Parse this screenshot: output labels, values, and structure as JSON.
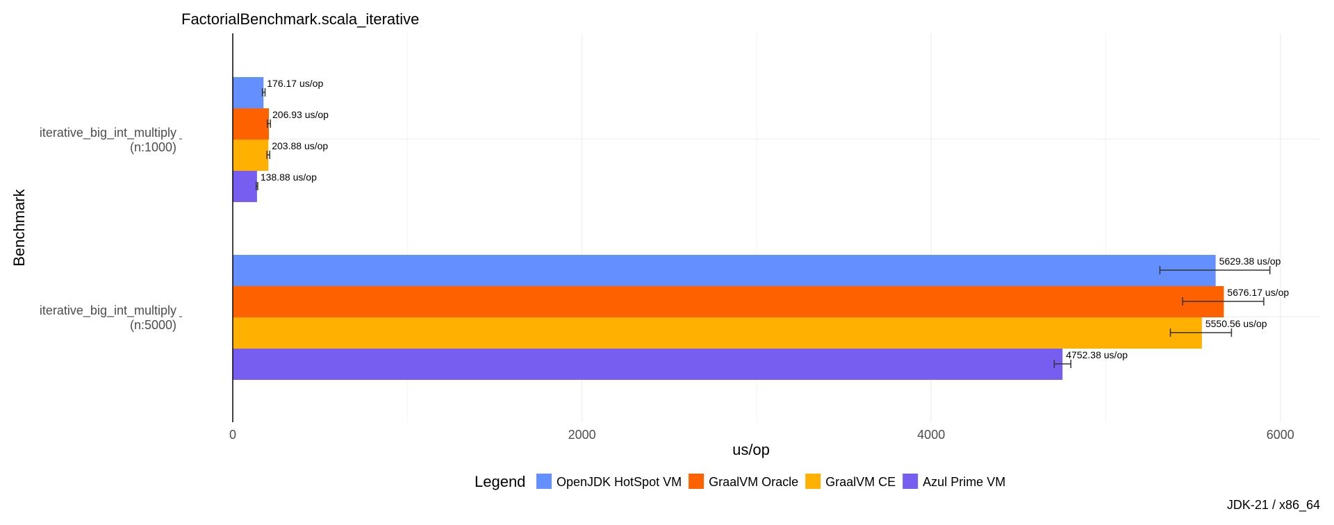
{
  "chart_data": {
    "type": "bar",
    "orientation": "horizontal",
    "title": "FactorialBenchmark.scala_iterative",
    "xlabel": "us/op",
    "ylabel": "Benchmark",
    "xlim": [
      0,
      6250
    ],
    "x_ticks": [
      "0",
      "2000",
      "4000",
      "6000"
    ],
    "grid": true,
    "categories": [
      {
        "line1": "iterative_big_int_multiply",
        "line2": "(n:1000)"
      },
      {
        "line1": "iterative_big_int_multiply",
        "line2": "(n:5000)"
      }
    ],
    "series": [
      {
        "name": "OpenJDK HotSpot VM",
        "color": "#648fff",
        "values": [
          176.17,
          5629.38
        ],
        "errors": [
          [
            170,
            185
          ],
          [
            5310,
            5940
          ]
        ],
        "labels": [
          "176.17 us/op",
          "5629.38 us/op"
        ]
      },
      {
        "name": "GraalVM Oracle",
        "color": "#fe6100",
        "values": [
          206.93,
          5676.17
        ],
        "errors": [
          [
            198,
            216
          ],
          [
            5440,
            5905
          ]
        ],
        "labels": [
          "206.93 us/op",
          "5676.17 us/op"
        ]
      },
      {
        "name": "GraalVM CE",
        "color": "#ffb000",
        "values": [
          203.88,
          5550.56
        ],
        "errors": [
          [
            196,
            212
          ],
          [
            5370,
            5720
          ]
        ],
        "labels": [
          "203.88 us/op",
          "5550.56 us/op"
        ]
      },
      {
        "name": "Azul Prime VM",
        "color": "#785ef0",
        "values": [
          138.88,
          4752.38
        ],
        "errors": [
          [
            134,
            143
          ],
          [
            4705,
            4800
          ]
        ],
        "labels": [
          "138.88 us/op",
          "4752.38 us/op"
        ]
      }
    ],
    "legend": {
      "title": "Legend",
      "position": "bottom"
    },
    "caption": "JDK-21 / x86_64"
  }
}
